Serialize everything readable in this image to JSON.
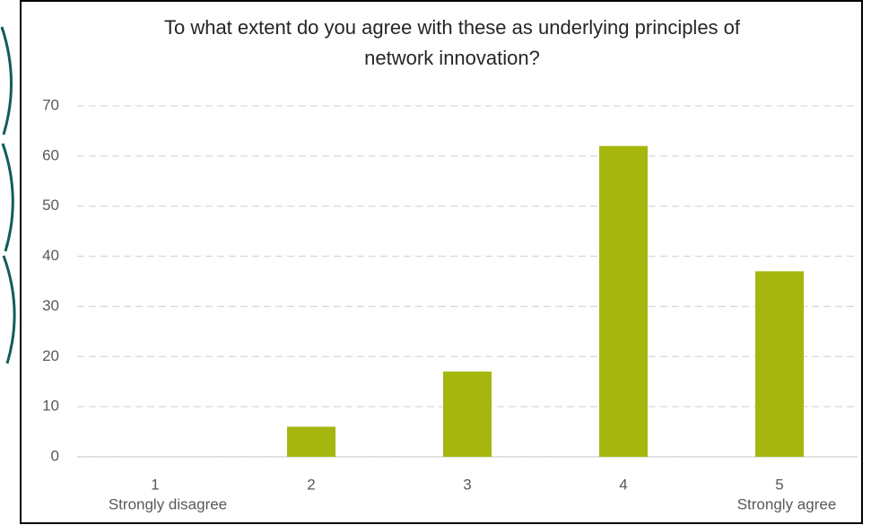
{
  "chart_data": {
    "type": "bar",
    "title": "To what extent do you agree with these as underlying principles of network innovation?",
    "categories": [
      "1",
      "2",
      "3",
      "4",
      "5"
    ],
    "scale_labels": {
      "low": "Strongly disagree",
      "high": "Strongly agree"
    },
    "values": [
      0,
      6,
      17,
      62,
      37
    ],
    "color": "#a5b70e",
    "ylim": [
      0,
      70
    ],
    "yticks": [
      0,
      10,
      20,
      30,
      40,
      50,
      60,
      70
    ],
    "grid": true
  }
}
